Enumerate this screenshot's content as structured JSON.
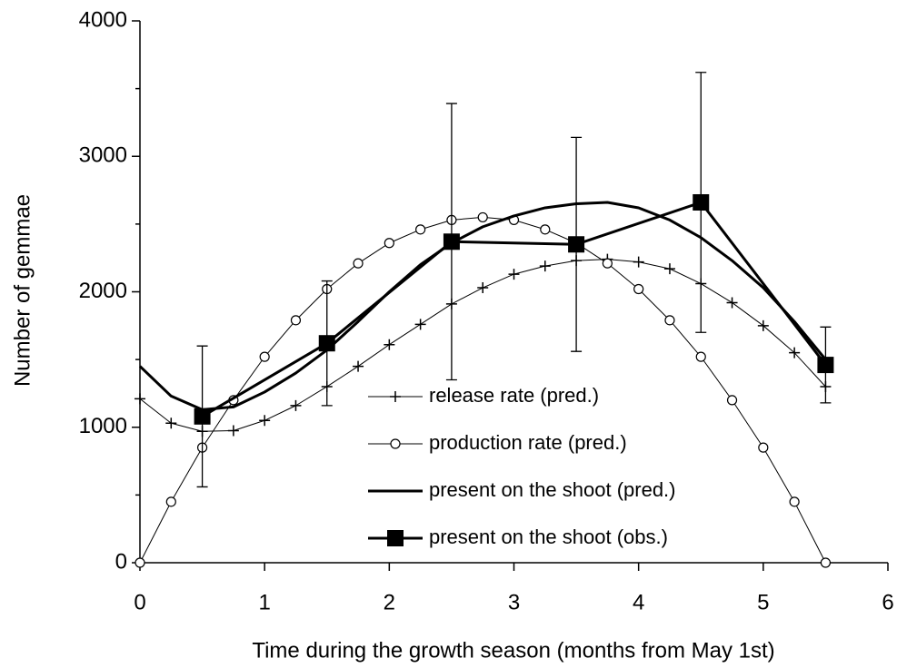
{
  "chart_data": {
    "type": "line",
    "xlabel": "Time during the growth season (months from May 1st)",
    "ylabel": "Number of gemmae",
    "xlim": [
      0,
      6
    ],
    "xticks": [
      0,
      1,
      2,
      3,
      4,
      5,
      6
    ],
    "ylim": [
      0,
      4000
    ],
    "yticks": [
      0,
      1000,
      2000,
      3000,
      4000
    ],
    "y_minor_ticks": [
      500,
      1500,
      2500,
      3500
    ],
    "grid": false,
    "series": [
      {
        "name": "release rate (pred.)",
        "color": "#000000",
        "marker": "plus",
        "line_width": 1,
        "x": [
          0,
          0.25,
          0.5,
          0.75,
          1,
          1.25,
          1.5,
          1.75,
          2,
          2.25,
          2.5,
          2.75,
          3,
          3.25,
          3.5,
          3.75,
          4,
          4.25,
          4.5,
          4.75,
          5,
          5.25,
          5.5
        ],
        "values": [
          1210,
          1030,
          970,
          975,
          1050,
          1160,
          1300,
          1450,
          1610,
          1760,
          1910,
          2030,
          2130,
          2190,
          2230,
          2240,
          2220,
          2170,
          2060,
          1920,
          1750,
          1550,
          1300
        ]
      },
      {
        "name": "production rate (pred.)",
        "color": "#000000",
        "marker": "circle",
        "line_width": 1,
        "x": [
          0,
          0.25,
          0.5,
          0.75,
          1,
          1.25,
          1.5,
          1.75,
          2,
          2.25,
          2.5,
          2.75,
          3,
          3.25,
          3.5,
          3.75,
          4,
          4.25,
          4.5,
          4.75,
          5,
          5.25,
          5.5
        ],
        "values": [
          0,
          450,
          850,
          1200,
          1520,
          1790,
          2020,
          2210,
          2360,
          2460,
          2530,
          2550,
          2530,
          2460,
          2360,
          2210,
          2020,
          1790,
          1520,
          1200,
          850,
          450,
          0
        ]
      },
      {
        "name": "present on the shoot (pred.)",
        "color": "#000000",
        "marker": "none",
        "line_width": 3,
        "x": [
          0,
          0.25,
          0.5,
          0.75,
          1,
          1.25,
          1.5,
          1.75,
          2,
          2.25,
          2.5,
          2.75,
          3,
          3.25,
          3.5,
          3.75,
          4,
          4.25,
          4.5,
          4.75,
          5,
          5.25,
          5.5
        ],
        "values": [
          1450,
          1230,
          1130,
          1150,
          1260,
          1400,
          1570,
          1780,
          2000,
          2200,
          2360,
          2480,
          2560,
          2620,
          2650,
          2660,
          2620,
          2530,
          2400,
          2230,
          2030,
          1780,
          1500
        ]
      },
      {
        "name": "present on the shoot (obs.)",
        "color": "#000000",
        "marker": "square",
        "line_width": 3,
        "x": [
          0.5,
          1.5,
          2.5,
          3.5,
          4.5,
          5.5
        ],
        "values": [
          1080,
          1620,
          2370,
          2350,
          2660,
          1460
        ],
        "errors": [
          520,
          460,
          1020,
          790,
          960,
          280
        ]
      }
    ]
  }
}
